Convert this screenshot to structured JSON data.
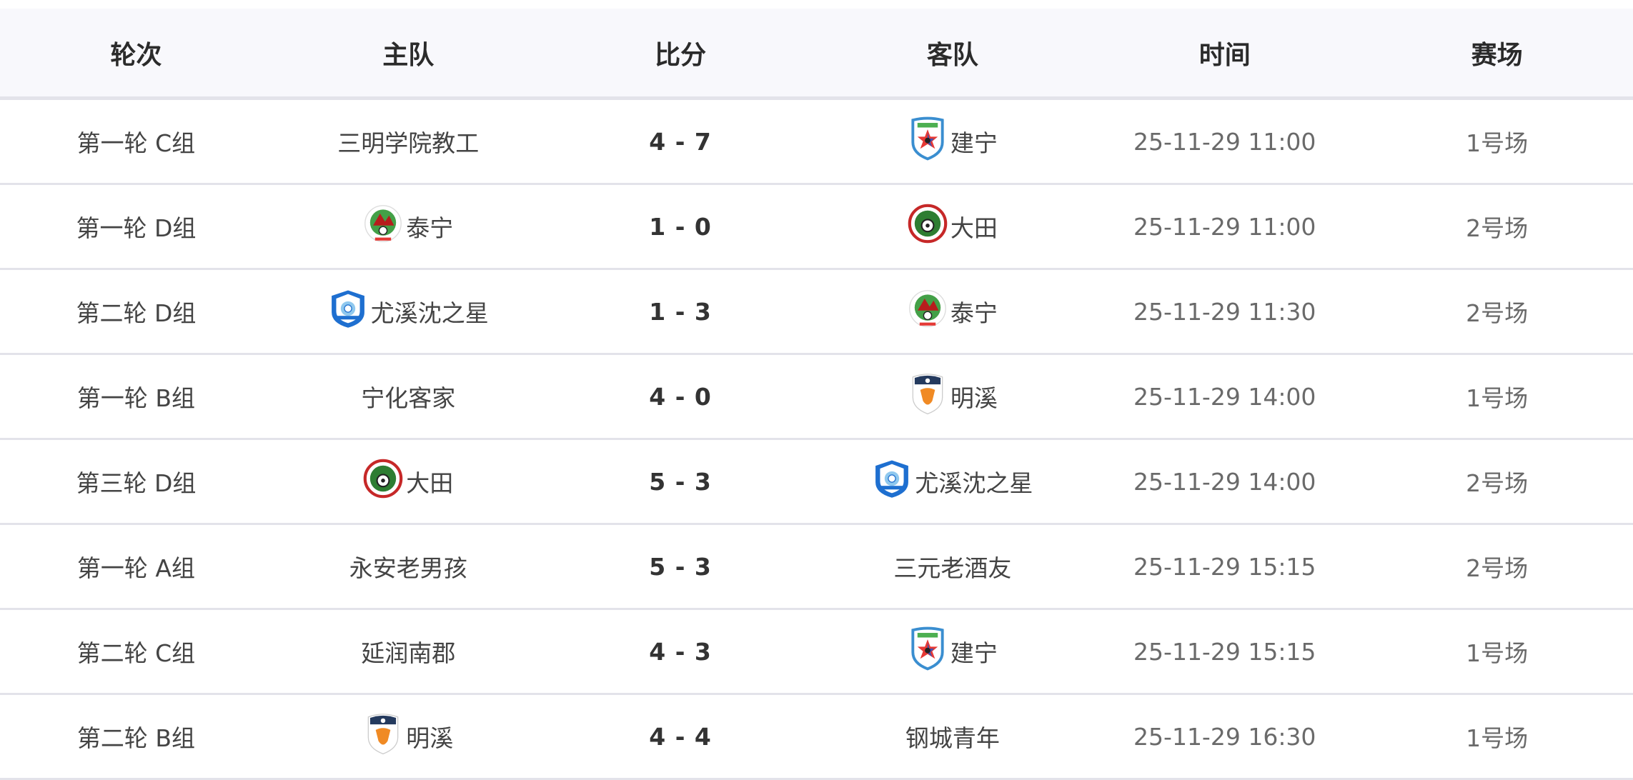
{
  "columns": [
    "轮次",
    "主队",
    "比分",
    "客队",
    "时间",
    "赛场"
  ],
  "colors": {
    "header_bg": "#f8f8fc",
    "divider": "#e3e3ea"
  },
  "matches": [
    {
      "round": "第一轮 C组",
      "home": "三明学院教工",
      "home_logo": "",
      "score": "4 - 7",
      "away": "建宁",
      "away_logo": "jianning",
      "time": "25-11-29 11:00",
      "venue": "1号场"
    },
    {
      "round": "第一轮 D组",
      "home": "泰宁",
      "home_logo": "taining",
      "score": "1 - 0",
      "away": "大田",
      "away_logo": "datian",
      "time": "25-11-29 11:00",
      "venue": "2号场"
    },
    {
      "round": "第二轮 D组",
      "home": "尤溪沈之星",
      "home_logo": "youxi",
      "score": "1 - 3",
      "away": "泰宁",
      "away_logo": "taining",
      "time": "25-11-29 11:30",
      "venue": "2号场"
    },
    {
      "round": "第一轮 B组",
      "home": "宁化客家",
      "home_logo": "",
      "score": "4 - 0",
      "away": "明溪",
      "away_logo": "mingxi",
      "time": "25-11-29 14:00",
      "venue": "1号场"
    },
    {
      "round": "第三轮 D组",
      "home": "大田",
      "home_logo": "datian",
      "score": "5 - 3",
      "away": "尤溪沈之星",
      "away_logo": "youxi",
      "time": "25-11-29 14:00",
      "venue": "2号场"
    },
    {
      "round": "第一轮 A组",
      "home": "永安老男孩",
      "home_logo": "",
      "score": "5 - 3",
      "away": "三元老酒友",
      "away_logo": "",
      "time": "25-11-29 15:15",
      "venue": "2号场"
    },
    {
      "round": "第二轮 C组",
      "home": "延润南郡",
      "home_logo": "",
      "score": "4 - 3",
      "away": "建宁",
      "away_logo": "jianning",
      "time": "25-11-29 15:15",
      "venue": "1号场"
    },
    {
      "round": "第二轮 B组",
      "home": "明溪",
      "home_logo": "mingxi",
      "score": "4 - 4",
      "away": "钢城青年",
      "away_logo": "",
      "time": "25-11-29 16:30",
      "venue": "1号场"
    }
  ]
}
